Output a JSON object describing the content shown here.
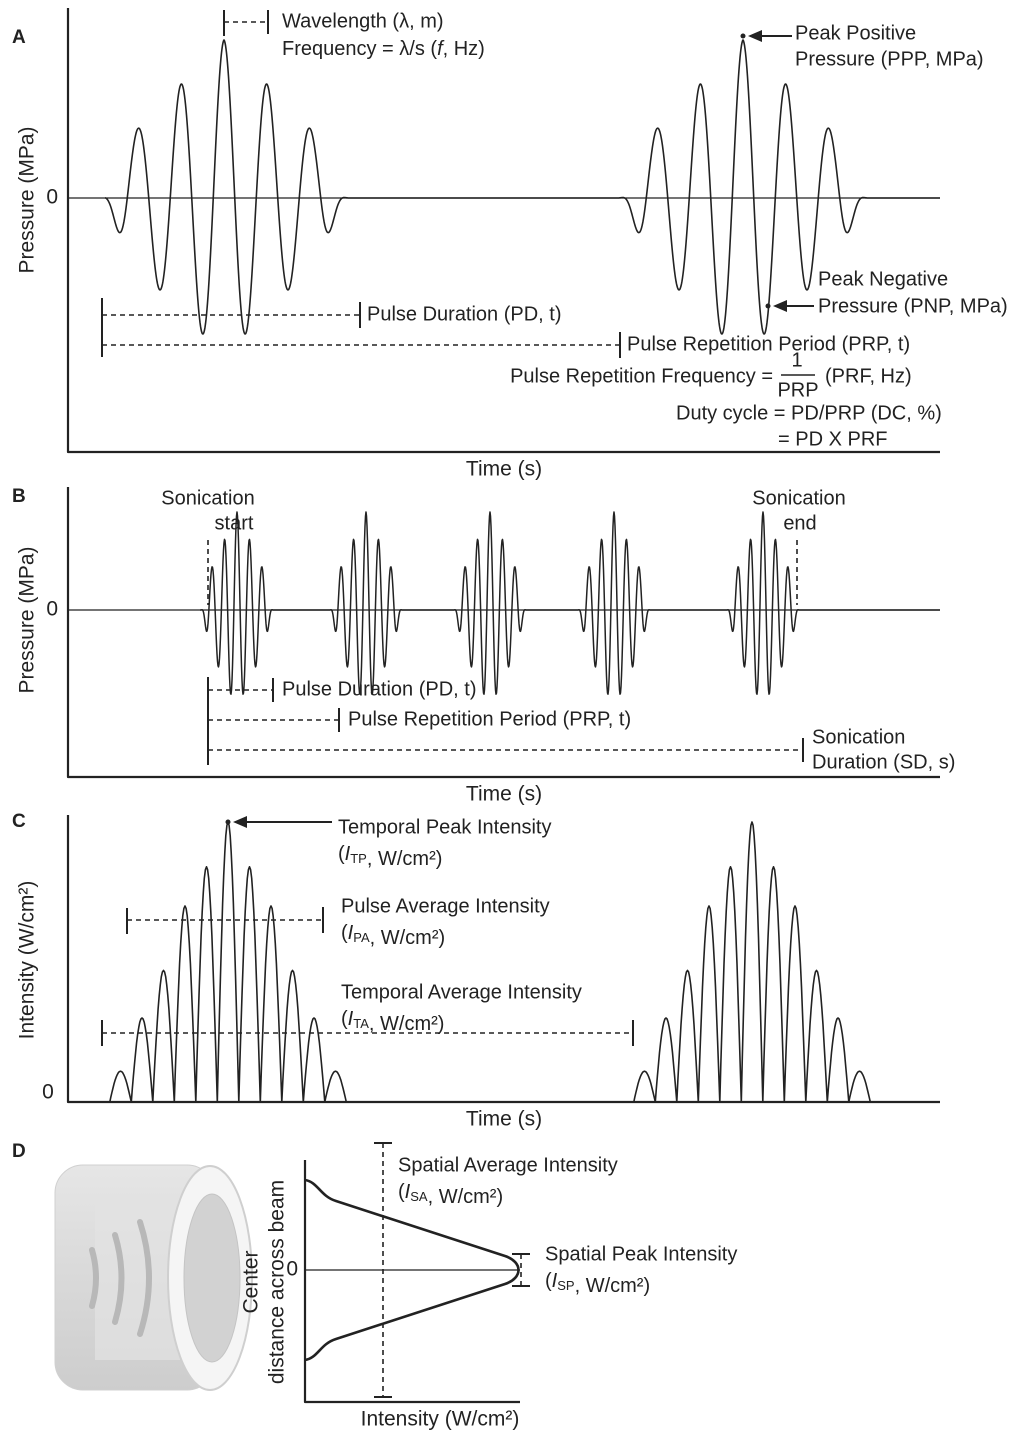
{
  "panels": [
    {
      "label": "A",
      "y_axis_label": "Pressure (MPa)",
      "zero_label": "0",
      "x_axis_label": "Time (s)",
      "annotations": {
        "wavelength": [
          "Wavelength (λ, m)",
          [
            "Frequency = λ/s (",
            {
              "italic": "f"
            },
            ", Hz)"
          ]
        ],
        "peak_positive": [
          "Peak Positive",
          "Pressure (PPP, MPa)"
        ],
        "peak_negative": [
          "Peak Negative",
          "Pressure (PNP, MPa)"
        ],
        "pulse_duration": [
          "Pulse Duration (PD, t)"
        ],
        "pulse_repetition_period": [
          "Pulse Repetition Period (PRP, t)"
        ],
        "pulse_repetition_frequency": {
          "lead": "Pulse Repetition Frequency =",
          "numerator": "1",
          "denominator": "PRP",
          "tail": "(PRF, Hz)"
        },
        "duty_cycle": [
          "Duty cycle = PD/PRP (DC, %)",
          "= PD X PRF"
        ]
      }
    },
    {
      "label": "B",
      "y_axis_label": "Pressure (MPa)",
      "zero_label": "0",
      "x_axis_label": "Time (s)",
      "annotations": {
        "sonication_start": [
          "Sonication",
          "start"
        ],
        "sonication_end": [
          "Sonication",
          "end"
        ],
        "pulse_duration": [
          "Pulse Duration (PD, t)"
        ],
        "pulse_repetition_period": [
          "Pulse Repetition Period (PRP, t)"
        ],
        "sonication_duration": [
          "Sonication",
          "Duration (SD, s)"
        ]
      }
    },
    {
      "label": "C",
      "y_axis_label": "Intensity (W/cm²)",
      "zero_label": "0",
      "x_axis_label": "Time (s)",
      "annotations": {
        "temporal_peak": [
          "Temporal Peak Intensity",
          [
            "(",
            {
              "italic": "I"
            },
            {
              "sub": "TP"
            },
            ", W/cm²)"
          ]
        ],
        "pulse_average": [
          "Pulse Average Intensity",
          [
            "(",
            {
              "italic": "I"
            },
            {
              "sub": "PA"
            },
            ", W/cm²)"
          ]
        ],
        "temporal_average": [
          "Temporal Average Intensity",
          [
            "(",
            {
              "italic": "I"
            },
            {
              "sub": "TA"
            },
            ", W/cm²)"
          ]
        ]
      }
    },
    {
      "label": "D",
      "y_axis_label": [
        "Center",
        "distance across beam"
      ],
      "zero_label": "0",
      "x_axis_label": "Intensity (W/cm²)",
      "annotations": {
        "spatial_average": [
          "Spatial Average Intensity",
          [
            "(",
            {
              "italic": "I"
            },
            {
              "sub": "SA"
            },
            ", W/cm²)"
          ]
        ],
        "spatial_peak": [
          "Spatial Peak Intensity",
          [
            "(",
            {
              "italic": "I"
            },
            {
              "sub": "SP"
            },
            ", W/cm²)"
          ]
        ]
      }
    }
  ]
}
